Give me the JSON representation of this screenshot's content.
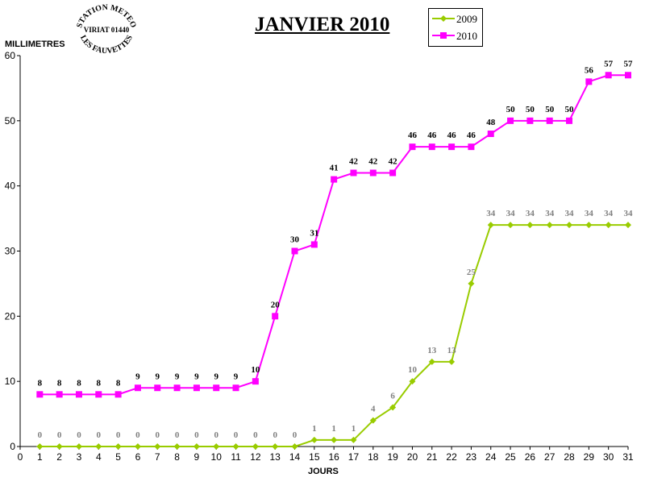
{
  "seal": {
    "top_text": "STATION METEO",
    "middle_text": "VIRIAT 01440",
    "bottom_text": "LES FAUVETTES"
  },
  "chart_data": {
    "type": "line",
    "title": "JANVIER 2010",
    "xlabel": "JOURS",
    "ylabel": "MILLIMETRES",
    "xlim": [
      0,
      31
    ],
    "ylim": [
      0,
      60
    ],
    "x_ticks": [
      0,
      1,
      2,
      3,
      4,
      5,
      6,
      7,
      8,
      9,
      10,
      11,
      12,
      13,
      14,
      15,
      16,
      17,
      18,
      19,
      20,
      21,
      22,
      23,
      24,
      25,
      26,
      27,
      28,
      29,
      30,
      31
    ],
    "y_ticks": [
      0,
      10,
      20,
      30,
      40,
      50,
      60
    ],
    "grid": false,
    "legend_position": "top-right",
    "x": [
      1,
      2,
      3,
      4,
      5,
      6,
      7,
      8,
      9,
      10,
      11,
      12,
      13,
      14,
      15,
      16,
      17,
      18,
      19,
      20,
      21,
      22,
      23,
      24,
      25,
      26,
      27,
      28,
      29,
      30,
      31
    ],
    "series": [
      {
        "name": "2009",
        "color": "#99cc00",
        "label_color": "#808080",
        "marker": "diamond",
        "values": [
          0,
          0,
          0,
          0,
          0,
          0,
          0,
          0,
          0,
          0,
          0,
          0,
          0,
          0,
          1,
          1,
          1,
          4,
          6,
          10,
          13,
          13,
          25,
          34,
          34,
          34,
          34,
          34,
          34,
          34,
          34
        ]
      },
      {
        "name": "2010",
        "color": "#ff00ff",
        "label_color": "#000000",
        "marker": "square",
        "values": [
          8,
          8,
          8,
          8,
          8,
          9,
          9,
          9,
          9,
          9,
          9,
          10,
          20,
          30,
          31,
          41,
          42,
          42,
          42,
          46,
          46,
          46,
          46,
          48,
          50,
          50,
          50,
          50,
          56,
          57,
          57
        ]
      }
    ]
  }
}
